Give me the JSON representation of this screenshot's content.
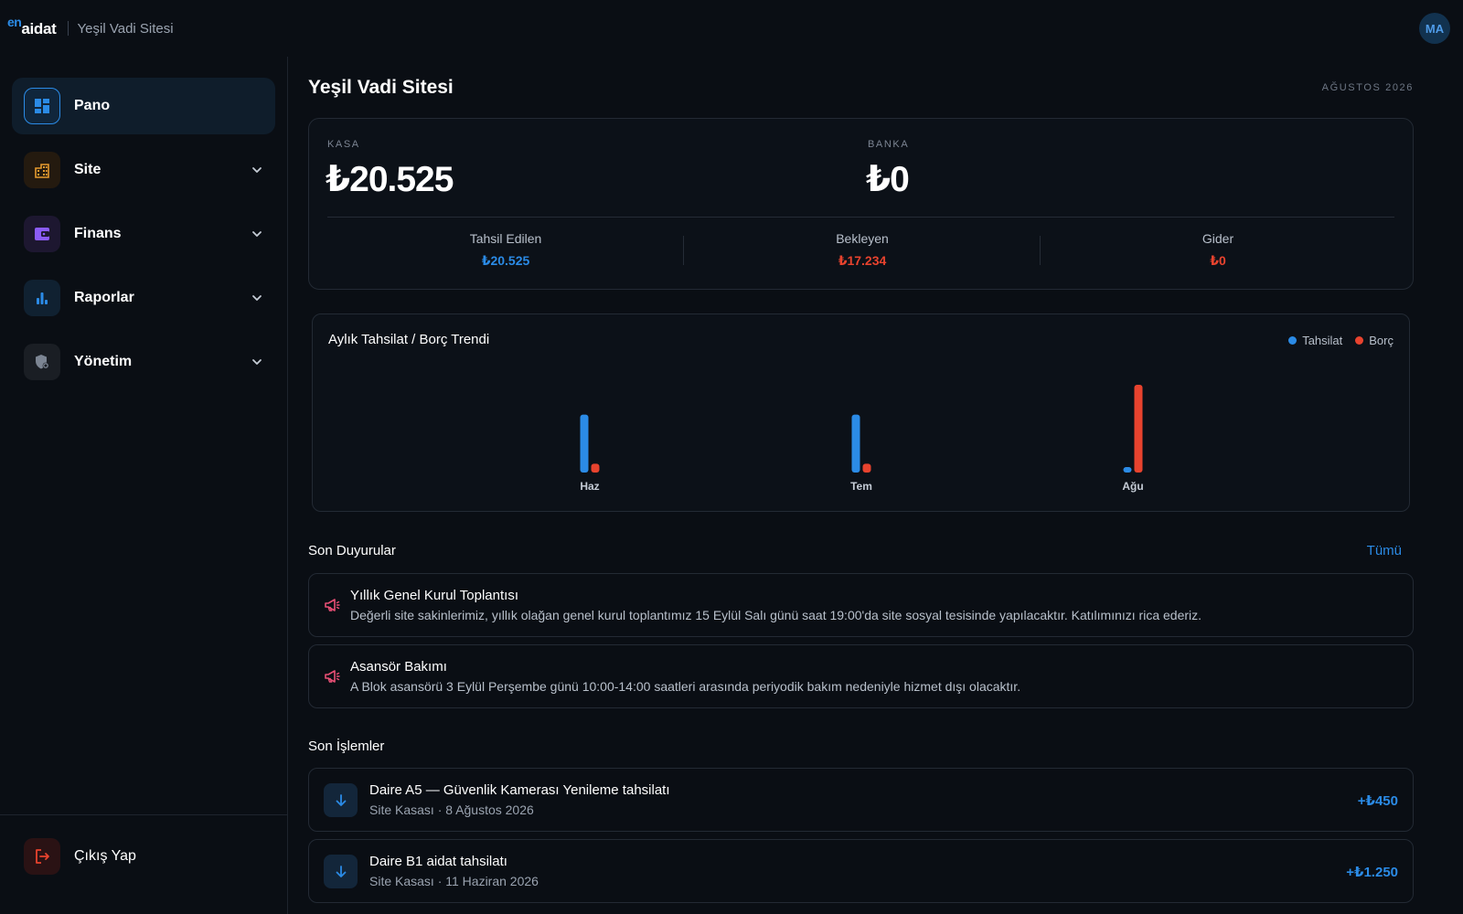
{
  "header": {
    "logo_en": "en",
    "logo_aidat": "aidat",
    "site_name": "Yeşil Vadi Sitesi",
    "avatar_initials": "MA"
  },
  "sidebar": {
    "items": [
      {
        "label": "Pano",
        "icon": "dashboard-icon",
        "active": true
      },
      {
        "label": "Site",
        "icon": "buildings-icon",
        "expandable": true
      },
      {
        "label": "Finans",
        "icon": "wallet-icon",
        "expandable": true
      },
      {
        "label": "Raporlar",
        "icon": "bar-chart-icon",
        "expandable": true
      },
      {
        "label": "Yönetim",
        "icon": "shield-gear-icon",
        "expandable": true
      }
    ],
    "logout_label": "Çıkış Yap"
  },
  "main": {
    "title": "Yeşil Vadi Sitesi",
    "period": "AĞUSTOS 2026",
    "balance": {
      "cash_label": "KASA",
      "cash_value": "₺20.525",
      "bank_label": "BANKA",
      "bank_value": "₺0",
      "stats": [
        {
          "label": "Tahsil Edilen",
          "value": "₺20.525",
          "color": "#2b8be6"
        },
        {
          "label": "Bekleyen",
          "value": "₺17.234",
          "color": "#e8432e"
        },
        {
          "label": "Gider",
          "value": "₺0",
          "color": "#e8432e"
        }
      ]
    },
    "announcements": {
      "title": "Son Duyurular",
      "see_all": "Tümü",
      "items": [
        {
          "title": "Yıllık Genel Kurul Toplantısı",
          "body": "Değerli site sakinlerimiz, yıllık olağan genel kurul toplantımız 15 Eylül Salı günü saat 19:00'da site sosyal tesisinde yapılacaktır. Katılımınızı rica ederiz."
        },
        {
          "title": "Asansör Bakımı",
          "body": "A Blok asansörü 3 Eylül Perşembe günü 10:00-14:00 saatleri arasında periyodik bakım nedeniyle hizmet dışı olacaktır."
        }
      ]
    },
    "transactions": {
      "title": "Son İşlemler",
      "items": [
        {
          "title": "Daire A5 — Güvenlik Kamerası Yenileme tahsilatı",
          "sub": "Site Kasası · 8 Ağustos 2026",
          "amount": "+₺450"
        },
        {
          "title": "Daire B1 aidat tahsilatı",
          "sub": "Site Kasası · 11 Haziran 2026",
          "amount": "+₺1.250"
        }
      ]
    }
  },
  "colors": {
    "accent": "#2b8be6",
    "debt": "#e8432e"
  },
  "chart_data": {
    "type": "bar",
    "title": "Aylık Tahsilat / Borç Trendi",
    "categories": [
      "Haz",
      "Tem",
      "Ağu"
    ],
    "series": [
      {
        "name": "Tahsilat",
        "color": "#2b8be6",
        "values": [
          0.66,
          0.66,
          0.06
        ]
      },
      {
        "name": "Borç",
        "color": "#e8432e",
        "values": [
          0.1,
          0.1,
          1.0
        ]
      }
    ],
    "ylim": [
      0,
      1
    ],
    "legend": "top-right",
    "grid": false
  }
}
